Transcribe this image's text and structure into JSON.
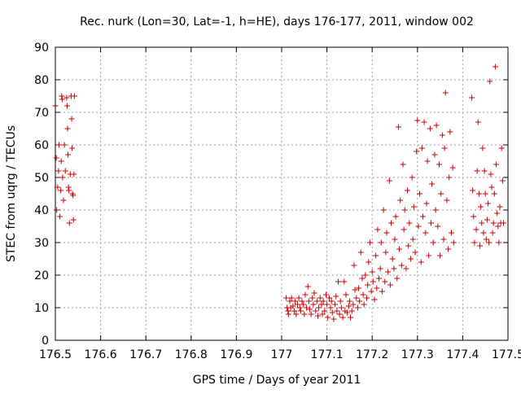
{
  "chart_data": {
    "type": "scatter",
    "title": "Rec. nurk (Lon=30, Lat=-1, h=HE), days 176-177, 2011, window 002",
    "xlabel": "GPS time / Days of year 2011",
    "ylabel": "STEC from uqrg / TECUs",
    "xlim": [
      176.5,
      177.5
    ],
    "ylim": [
      0,
      90
    ],
    "xticks": [
      176.5,
      176.6,
      176.7,
      176.8,
      176.9,
      177,
      177.1,
      177.2,
      177.3,
      177.4,
      177.5
    ],
    "xtick_labels": [
      "176.5",
      "176.6",
      "176.7",
      "176.8",
      "176.9",
      "177",
      "177.1",
      "177.2",
      "177.3",
      "177.4",
      "177.5"
    ],
    "yticks": [
      0,
      10,
      20,
      30,
      40,
      50,
      60,
      70,
      80,
      90
    ],
    "ytick_labels": [
      "0",
      "10",
      "20",
      "30",
      "40",
      "50",
      "60",
      "70",
      "80",
      "90"
    ],
    "grid": true,
    "marker": "+",
    "color": "#cc0000",
    "series": [
      {
        "points": [
          [
            176.5,
            72.0
          ],
          [
            176.502,
            56.0
          ],
          [
            176.503,
            40.0
          ],
          [
            176.505,
            47.0
          ],
          [
            176.507,
            52.0
          ],
          [
            176.508,
            60.0
          ],
          [
            176.51,
            38.0
          ],
          [
            176.512,
            46.0
          ],
          [
            176.513,
            55.0
          ],
          [
            176.514,
            75.0
          ],
          [
            176.515,
            74.0
          ],
          [
            176.516,
            50.0
          ],
          [
            176.518,
            43.0
          ],
          [
            176.52,
            60.0
          ],
          [
            176.522,
            52.0
          ],
          [
            176.525,
            74.5
          ],
          [
            176.526,
            72.0
          ],
          [
            176.527,
            65.0
          ],
          [
            176.528,
            57.0
          ],
          [
            176.529,
            47.0
          ],
          [
            176.53,
            46.0
          ],
          [
            176.531,
            36.0
          ],
          [
            176.533,
            51.0
          ],
          [
            176.535,
            75.0
          ],
          [
            176.536,
            68.0
          ],
          [
            176.537,
            59.0
          ],
          [
            176.538,
            45.0
          ],
          [
            176.539,
            44.5
          ],
          [
            176.54,
            37.0
          ],
          [
            176.541,
            51.0
          ],
          [
            176.542,
            75.0
          ],
          [
            177.01,
            13.0
          ],
          [
            177.012,
            10.0
          ],
          [
            177.014,
            9.0
          ],
          [
            177.015,
            8.0
          ],
          [
            177.018,
            12.0
          ],
          [
            177.02,
            10.0
          ],
          [
            177.022,
            13.0
          ],
          [
            177.025,
            10.5
          ],
          [
            177.028,
            9.0
          ],
          [
            177.03,
            12.0
          ],
          [
            177.032,
            8.0
          ],
          [
            177.035,
            11.0
          ],
          [
            177.038,
            13.0
          ],
          [
            177.04,
            10.0
          ],
          [
            177.042,
            9.0
          ],
          [
            177.045,
            12.0
          ],
          [
            177.048,
            11.0
          ],
          [
            177.05,
            8.0
          ],
          [
            177.052,
            14.0
          ],
          [
            177.055,
            10.0
          ],
          [
            177.058,
            16.5
          ],
          [
            177.06,
            12.0
          ],
          [
            177.062,
            9.5
          ],
          [
            177.065,
            8.0
          ],
          [
            177.068,
            13.0
          ],
          [
            177.07,
            11.0
          ],
          [
            177.072,
            14.5
          ],
          [
            177.075,
            9.0
          ],
          [
            177.078,
            12.0
          ],
          [
            177.08,
            7.5
          ],
          [
            177.082,
            10.0
          ],
          [
            177.085,
            13.0
          ],
          [
            177.088,
            11.0
          ],
          [
            177.09,
            8.0
          ],
          [
            177.092,
            12.0
          ],
          [
            177.095,
            9.0
          ],
          [
            177.098,
            14.0
          ],
          [
            177.1,
            11.0
          ],
          [
            177.102,
            7.0
          ],
          [
            177.105,
            13.0
          ],
          [
            177.108,
            10.0
          ],
          [
            177.11,
            12.0
          ],
          [
            177.112,
            8.5
          ],
          [
            177.115,
            6.5
          ],
          [
            177.118,
            11.0
          ],
          [
            177.12,
            13.5
          ],
          [
            177.122,
            9.0
          ],
          [
            177.125,
            18.0
          ],
          [
            177.128,
            8.0
          ],
          [
            177.13,
            12.0
          ],
          [
            177.132,
            10.0
          ],
          [
            177.135,
            7.0
          ],
          [
            177.138,
            18.0
          ],
          [
            177.14,
            9.0
          ],
          [
            177.142,
            14.0
          ],
          [
            177.145,
            8.5
          ],
          [
            177.148,
            10.5
          ],
          [
            177.15,
            12.0
          ],
          [
            177.152,
            7.0
          ],
          [
            177.155,
            9.0
          ],
          [
            177.158,
            11.0
          ],
          [
            177.16,
            23.0
          ],
          [
            177.162,
            15.5
          ],
          [
            177.165,
            13.0
          ],
          [
            177.168,
            10.0
          ],
          [
            177.17,
            16.0
          ],
          [
            177.172,
            12.0
          ],
          [
            177.175,
            27.0
          ],
          [
            177.178,
            19.0
          ],
          [
            177.18,
            14.0
          ],
          [
            177.182,
            11.0
          ],
          [
            177.185,
            20.0
          ],
          [
            177.188,
            13.0
          ],
          [
            177.19,
            17.0
          ],
          [
            177.192,
            24.0
          ],
          [
            177.195,
            30.0
          ],
          [
            177.198,
            15.0
          ],
          [
            177.2,
            21.0
          ],
          [
            177.202,
            18.0
          ],
          [
            177.205,
            12.5
          ],
          [
            177.208,
            26.0
          ],
          [
            177.21,
            16.0
          ],
          [
            177.212,
            34.0
          ],
          [
            177.215,
            19.0
          ],
          [
            177.218,
            22.0
          ],
          [
            177.22,
            30.0
          ],
          [
            177.222,
            15.0
          ],
          [
            177.225,
            40.0
          ],
          [
            177.228,
            18.0
          ],
          [
            177.23,
            27.0
          ],
          [
            177.232,
            33.0
          ],
          [
            177.235,
            21.0
          ],
          [
            177.238,
            49.0
          ],
          [
            177.24,
            17.0
          ],
          [
            177.242,
            36.0
          ],
          [
            177.245,
            25.0
          ],
          [
            177.248,
            22.0
          ],
          [
            177.25,
            31.0
          ],
          [
            177.252,
            38.0
          ],
          [
            177.255,
            19.0
          ],
          [
            177.258,
            65.5
          ],
          [
            177.26,
            28.0
          ],
          [
            177.262,
            43.0
          ],
          [
            177.265,
            23.0
          ],
          [
            177.268,
            54.0
          ],
          [
            177.27,
            34.0
          ],
          [
            177.272,
            40.0
          ],
          [
            177.275,
            22.0
          ],
          [
            177.278,
            46.0
          ],
          [
            177.28,
            29.0
          ],
          [
            177.282,
            36.0
          ],
          [
            177.285,
            25.0
          ],
          [
            177.288,
            50.0
          ],
          [
            177.29,
            31.0
          ],
          [
            177.292,
            41.0
          ],
          [
            177.295,
            27.0
          ],
          [
            177.298,
            58.0
          ],
          [
            177.3,
            67.5
          ],
          [
            177.302,
            35.0
          ],
          [
            177.305,
            45.0
          ],
          [
            177.308,
            24.0
          ],
          [
            177.31,
            59.0
          ],
          [
            177.312,
            38.0
          ],
          [
            177.315,
            67.0
          ],
          [
            177.318,
            33.0
          ],
          [
            177.32,
            42.0
          ],
          [
            177.322,
            55.0
          ],
          [
            177.325,
            26.0
          ],
          [
            177.328,
            65.0
          ],
          [
            177.33,
            36.0
          ],
          [
            177.332,
            48.0
          ],
          [
            177.335,
            30.0
          ],
          [
            177.338,
            57.0
          ],
          [
            177.34,
            40.0
          ],
          [
            177.342,
            66.0
          ],
          [
            177.345,
            35.0
          ],
          [
            177.348,
            54.0
          ],
          [
            177.35,
            26.0
          ],
          [
            177.352,
            45.0
          ],
          [
            177.355,
            63.0
          ],
          [
            177.358,
            31.0
          ],
          [
            177.36,
            59.0
          ],
          [
            177.362,
            76.0
          ],
          [
            177.365,
            43.0
          ],
          [
            177.368,
            28.0
          ],
          [
            177.37,
            50.0
          ],
          [
            177.372,
            64.0
          ],
          [
            177.375,
            33.0
          ],
          [
            177.378,
            53.0
          ],
          [
            177.38,
            30.0
          ],
          [
            177.42,
            74.5
          ],
          [
            177.422,
            46.0
          ],
          [
            177.424,
            38.0
          ],
          [
            177.426,
            30.0
          ],
          [
            177.43,
            34.0
          ],
          [
            177.432,
            52.0
          ],
          [
            177.434,
            67.0
          ],
          [
            177.436,
            45.0
          ],
          [
            177.438,
            29.0
          ],
          [
            177.44,
            41.0
          ],
          [
            177.442,
            36.0
          ],
          [
            177.444,
            59.0
          ],
          [
            177.446,
            33.0
          ],
          [
            177.448,
            52.0
          ],
          [
            177.45,
            45.0
          ],
          [
            177.452,
            31.0
          ],
          [
            177.454,
            37.0
          ],
          [
            177.456,
            42.0
          ],
          [
            177.458,
            30.0
          ],
          [
            177.46,
            79.5
          ],
          [
            177.462,
            51.0
          ],
          [
            177.464,
            47.0
          ],
          [
            177.466,
            33.0
          ],
          [
            177.468,
            36.0
          ],
          [
            177.47,
            45.0
          ],
          [
            177.472,
            84.0
          ],
          [
            177.474,
            54.0
          ],
          [
            177.476,
            39.0
          ],
          [
            177.478,
            35.0
          ],
          [
            177.48,
            30.0
          ],
          [
            177.482,
            41.0
          ],
          [
            177.484,
            36.0
          ],
          [
            177.486,
            59.0
          ],
          [
            177.488,
            49.0
          ],
          [
            177.49,
            36.0
          ]
        ]
      }
    ]
  }
}
